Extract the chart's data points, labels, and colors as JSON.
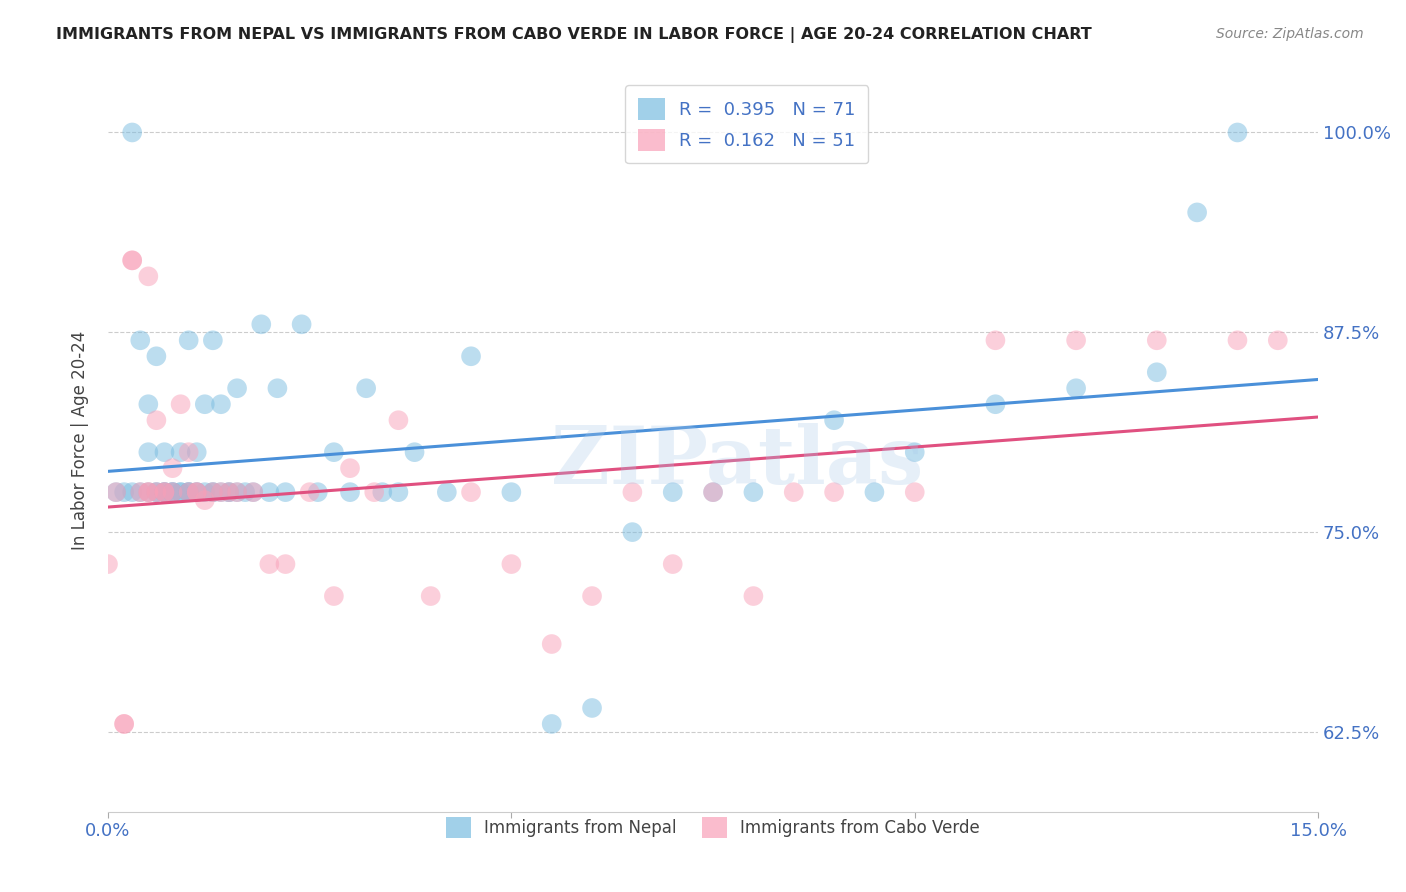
{
  "title": "IMMIGRANTS FROM NEPAL VS IMMIGRANTS FROM CABO VERDE IN LABOR FORCE | AGE 20-24 CORRELATION CHART",
  "source": "Source: ZipAtlas.com",
  "ylabel": "In Labor Force | Age 20-24",
  "xlim": [
    0.0,
    0.15
  ],
  "ylim": [
    0.575,
    1.04
  ],
  "yticks": [
    0.625,
    0.75,
    0.875,
    1.0
  ],
  "ytick_labels": [
    "62.5%",
    "75.0%",
    "87.5%",
    "100.0%"
  ],
  "xticks": [
    0.0,
    0.05,
    0.1,
    0.15
  ],
  "xtick_labels": [
    "0.0%",
    "",
    "",
    "15.0%"
  ],
  "nepal_R": 0.395,
  "nepal_N": 71,
  "caboverde_R": 0.162,
  "caboverde_N": 51,
  "nepal_color": "#7abce0",
  "caboverde_color": "#f9a0b8",
  "trendline_nepal_color": "#4a90d9",
  "trendline_caboverde_color": "#e05080",
  "watermark": "ZIPatlas",
  "background_color": "#ffffff",
  "grid_color": "#cccccc",
  "axis_color": "#4472c4",
  "nepal_x": [
    0.001,
    0.002,
    0.003,
    0.003,
    0.004,
    0.004,
    0.005,
    0.005,
    0.005,
    0.006,
    0.006,
    0.006,
    0.007,
    0.007,
    0.007,
    0.007,
    0.008,
    0.008,
    0.008,
    0.009,
    0.009,
    0.009,
    0.01,
    0.01,
    0.01,
    0.01,
    0.011,
    0.011,
    0.011,
    0.012,
    0.012,
    0.013,
    0.013,
    0.013,
    0.014,
    0.014,
    0.015,
    0.015,
    0.016,
    0.016,
    0.017,
    0.018,
    0.019,
    0.02,
    0.021,
    0.022,
    0.024,
    0.026,
    0.028,
    0.03,
    0.032,
    0.034,
    0.036,
    0.038,
    0.042,
    0.045,
    0.05,
    0.055,
    0.06,
    0.065,
    0.07,
    0.075,
    0.08,
    0.09,
    0.095,
    0.1,
    0.11,
    0.12,
    0.13,
    0.135,
    0.14
  ],
  "nepal_y": [
    0.775,
    0.775,
    0.775,
    1.0,
    0.775,
    0.87,
    0.775,
    0.8,
    0.83,
    0.775,
    0.775,
    0.86,
    0.775,
    0.775,
    0.775,
    0.8,
    0.775,
    0.775,
    0.775,
    0.775,
    0.775,
    0.8,
    0.775,
    0.775,
    0.775,
    0.87,
    0.775,
    0.775,
    0.8,
    0.775,
    0.83,
    0.775,
    0.775,
    0.87,
    0.775,
    0.83,
    0.775,
    0.775,
    0.775,
    0.84,
    0.775,
    0.775,
    0.88,
    0.775,
    0.84,
    0.775,
    0.88,
    0.775,
    0.8,
    0.775,
    0.84,
    0.775,
    0.775,
    0.8,
    0.775,
    0.86,
    0.775,
    0.63,
    0.64,
    0.75,
    0.775,
    0.775,
    0.775,
    0.82,
    0.775,
    0.8,
    0.83,
    0.84,
    0.85,
    0.95,
    1.0
  ],
  "caboverde_x": [
    0.0,
    0.001,
    0.002,
    0.002,
    0.003,
    0.003,
    0.004,
    0.005,
    0.005,
    0.005,
    0.006,
    0.006,
    0.007,
    0.007,
    0.008,
    0.008,
    0.009,
    0.01,
    0.01,
    0.011,
    0.011,
    0.012,
    0.013,
    0.014,
    0.015,
    0.016,
    0.018,
    0.02,
    0.022,
    0.025,
    0.028,
    0.03,
    0.033,
    0.036,
    0.04,
    0.045,
    0.05,
    0.055,
    0.06,
    0.065,
    0.07,
    0.075,
    0.08,
    0.085,
    0.09,
    0.1,
    0.11,
    0.12,
    0.13,
    0.14,
    0.145
  ],
  "caboverde_y": [
    0.73,
    0.775,
    0.63,
    0.63,
    0.92,
    0.92,
    0.775,
    0.775,
    0.775,
    0.91,
    0.775,
    0.82,
    0.775,
    0.775,
    0.79,
    0.775,
    0.83,
    0.775,
    0.8,
    0.775,
    0.775,
    0.77,
    0.775,
    0.775,
    0.775,
    0.775,
    0.775,
    0.73,
    0.73,
    0.775,
    0.71,
    0.79,
    0.775,
    0.82,
    0.71,
    0.775,
    0.73,
    0.68,
    0.71,
    0.775,
    0.73,
    0.775,
    0.71,
    0.775,
    0.775,
    0.775,
    0.87,
    0.87,
    0.87,
    0.87,
    0.87
  ]
}
